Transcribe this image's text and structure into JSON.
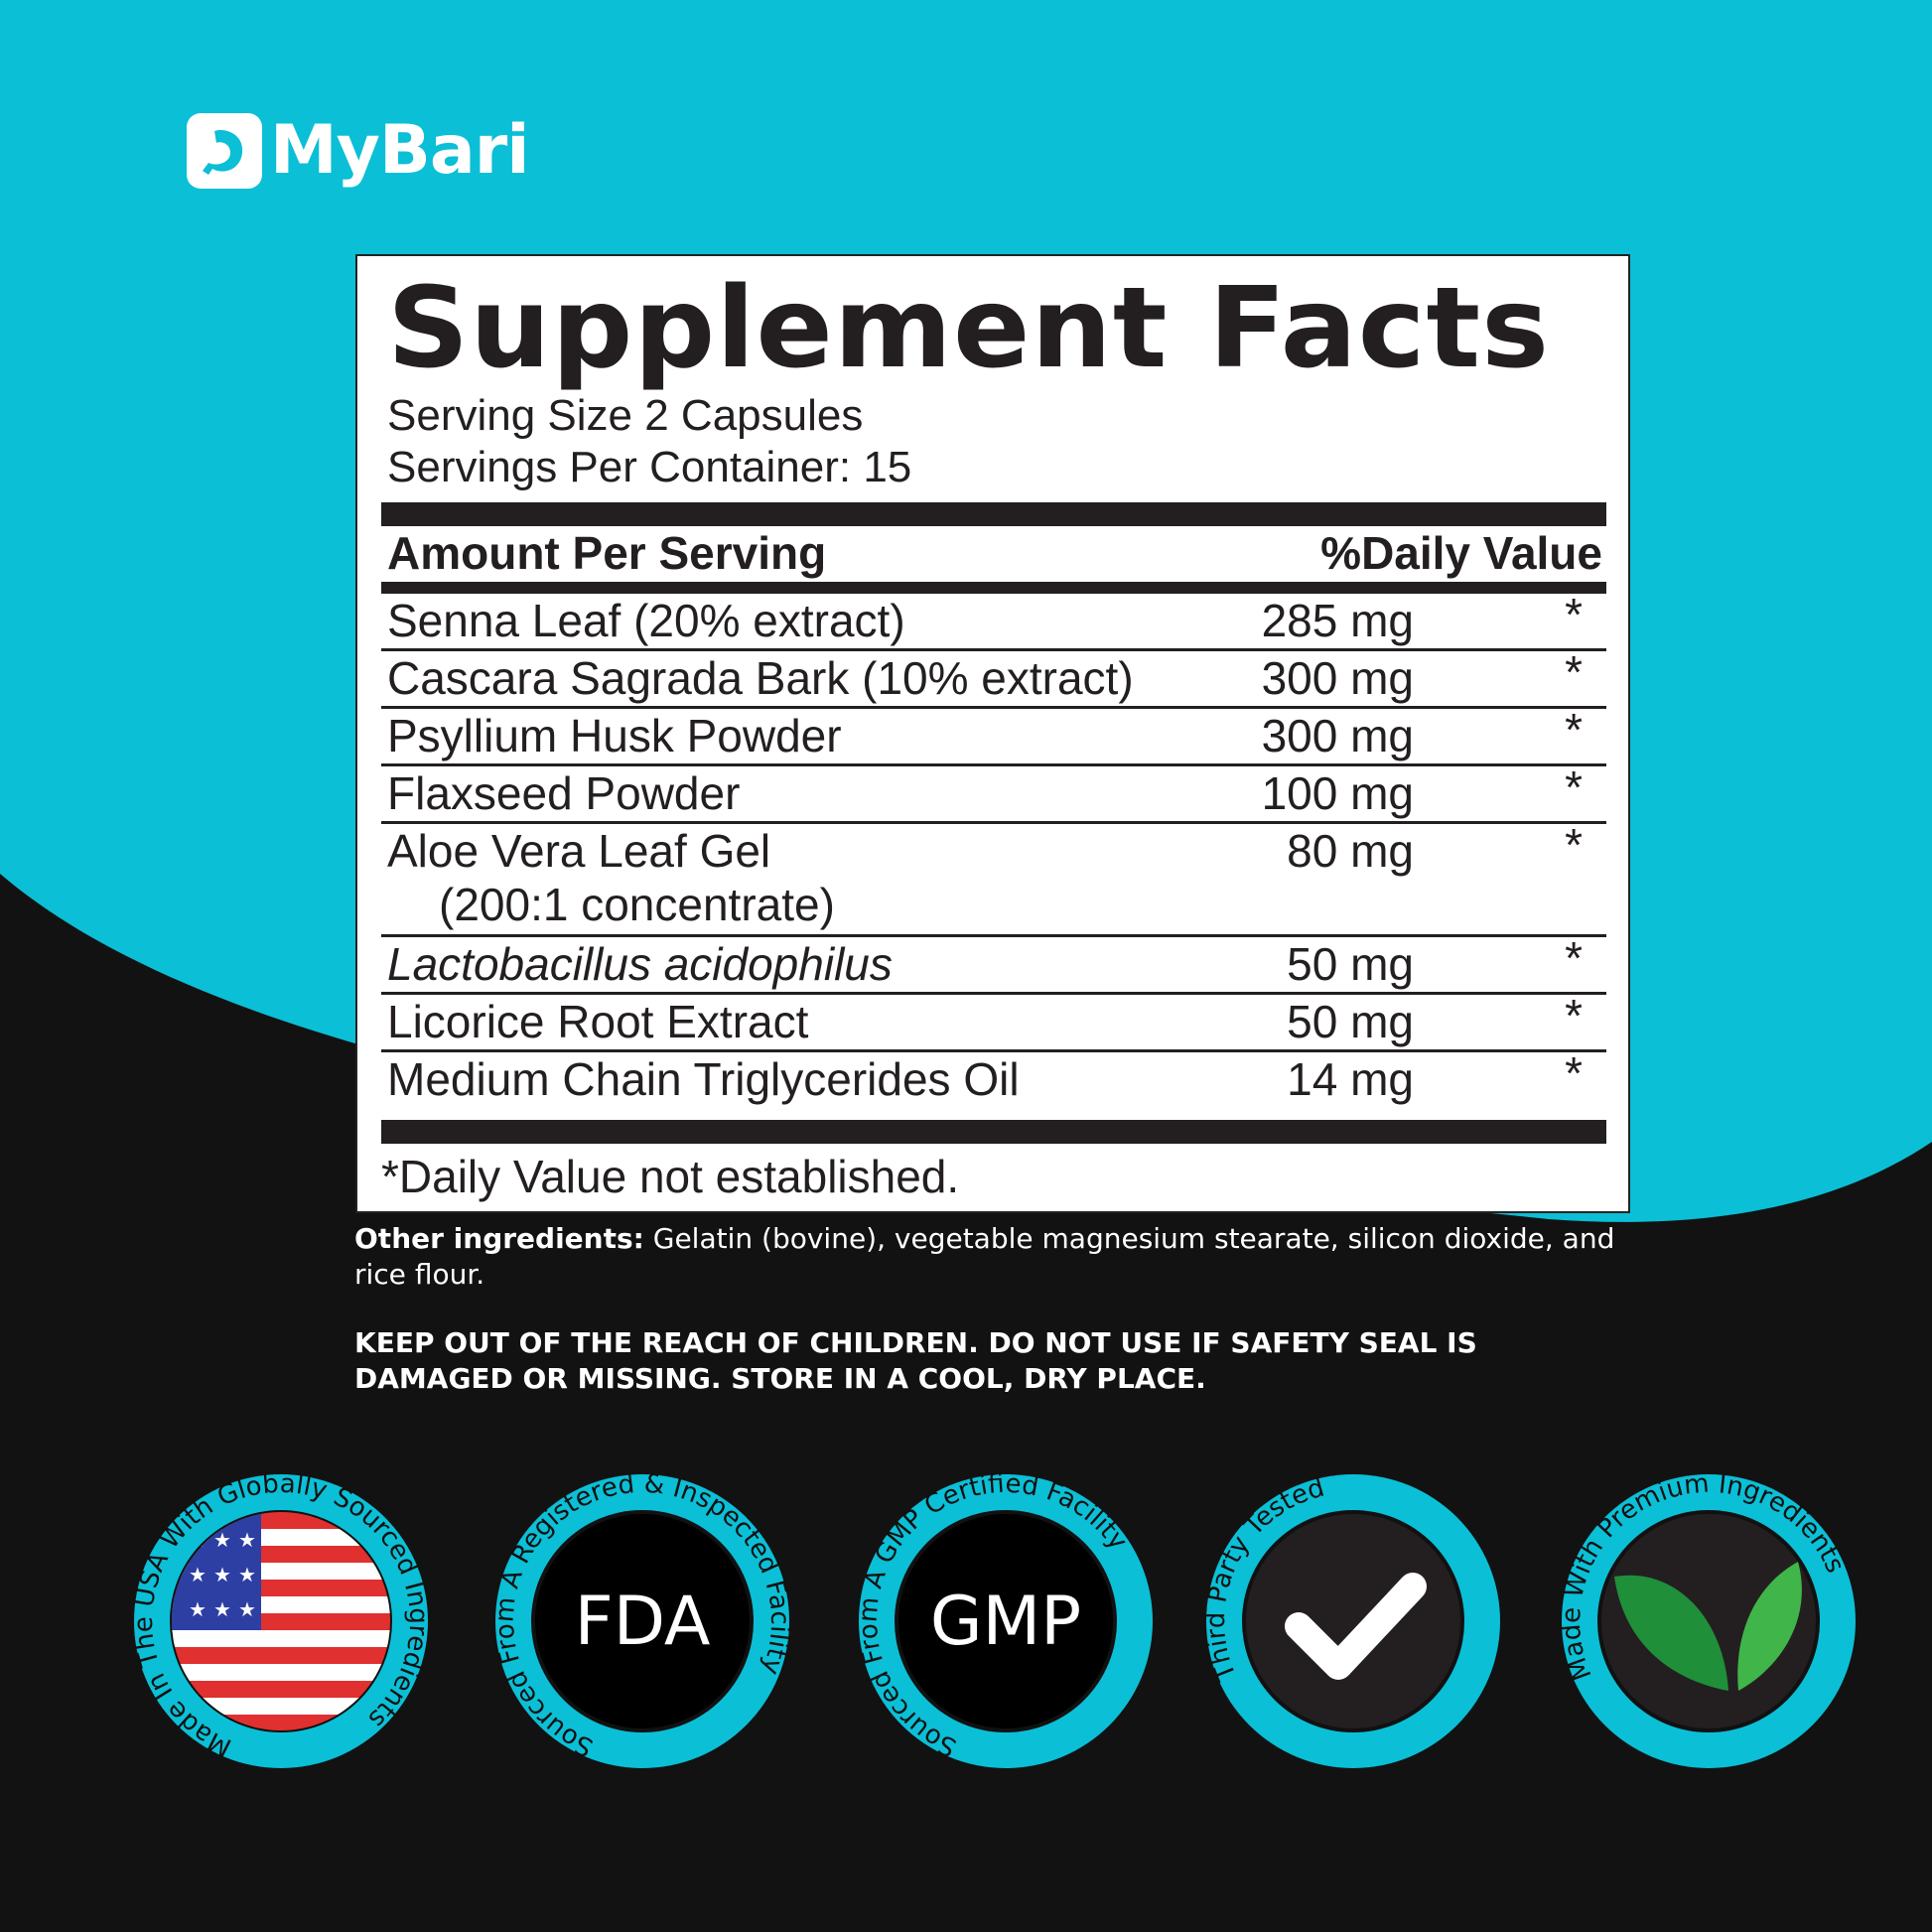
{
  "colors": {
    "brand_cyan": "#0bbfd6",
    "background": "#121212",
    "panel": "#ffffff",
    "text": "#231f20"
  },
  "brand": {
    "name": "MyBari",
    "icon": "stomach-icon"
  },
  "facts": {
    "title": "Supplement Facts",
    "serving_size": "Serving Size 2 Capsules",
    "servings_per_container": "Servings Per Container: 15",
    "header_amount": "Amount Per Serving",
    "header_dv": "%Daily Value",
    "rows": [
      {
        "name": "Senna Leaf (20% extract)",
        "amount": "285 mg",
        "dv": "*"
      },
      {
        "name": "Cascara Sagrada Bark (10% extract)",
        "amount": "300 mg",
        "dv": "*"
      },
      {
        "name": "Psyllium Husk Powder",
        "amount": "300 mg",
        "dv": "*"
      },
      {
        "name": "Flaxseed Powder",
        "amount": "100 mg",
        "dv": "*"
      },
      {
        "name": "Aloe Vera Leaf Gel",
        "name2": "(200:1 concentrate)",
        "amount": "80 mg",
        "dv": "*"
      },
      {
        "name": "Lactobacillus acidophilus",
        "amount": "50 mg",
        "dv": "*"
      },
      {
        "name": "Licorice Root Extract",
        "amount": "50 mg",
        "dv": "*"
      },
      {
        "name": "Medium Chain Triglycerides Oil",
        "amount": "14 mg",
        "dv": "*"
      }
    ],
    "footnote": "*Daily Value not established."
  },
  "other_ingredients": {
    "label": "Other ingredients:",
    "text": " Gelatin (bovine), vegetable magnesium stearate, silicon dioxide, and rice flour."
  },
  "warning": "KEEP OUT OF THE REACH OF CHILDREN. DO NOT USE IF SAFETY SEAL IS DAMAGED OR MISSING. STORE IN A COOL, DRY PLACE.",
  "badges": [
    {
      "ring": "Made In The USA With Globally Sourced Ingredients",
      "center": "",
      "icon": "us-flag-icon"
    },
    {
      "ring": "Sourced From A Registered & Inspected Facility",
      "center": "FDA",
      "icon": ""
    },
    {
      "ring": "Sourced From A GMP Certified Facility",
      "center": "GMP",
      "icon": ""
    },
    {
      "ring": "Third Party Tested",
      "center": "",
      "icon": "checkmark-icon"
    },
    {
      "ring": "Made With Premium Ingredients",
      "center": "",
      "icon": "leaf-icon"
    }
  ]
}
